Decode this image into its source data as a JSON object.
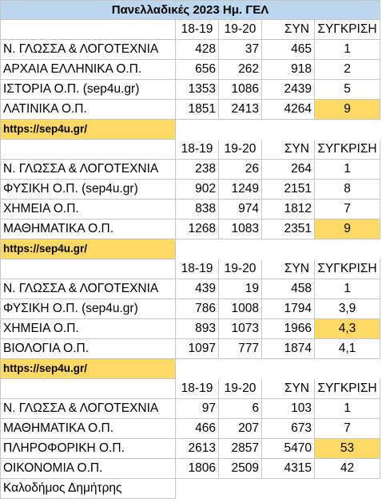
{
  "title": "Πανελλαδικές 2023 Ημ. ΓΕΛ",
  "headers": {
    "c1": "18-19",
    "c2": "19-20",
    "c3": "ΣΥΝ",
    "c4": "ΣΥΓΚΡΙΣΗ"
  },
  "link": "https://sep4u.gr/",
  "author": "Καλοδήμος Δημήτρης",
  "groups": [
    {
      "rows": [
        {
          "subject": "Ν. ΓΛΩΣΣΑ & ΛΟΓΟΤΕΧΝΙΑ",
          "y1": "428",
          "y2": "37",
          "sum": "465",
          "cmp": "1"
        },
        {
          "subject": "ΑΡΧΑΙΑ ΕΛΛΗΝΙΚΑ Ο.Π.",
          "y1": "656",
          "y2": "262",
          "sum": "918",
          "cmp": "2"
        },
        {
          "subject": "ΙΣΤΟΡΙΑ Ο.Π. (sep4u.gr)",
          "y1": "1353",
          "y2": "1086",
          "sum": "2439",
          "cmp": "5"
        },
        {
          "subject": "ΛΑΤΙΝΙΚΑ Ο.Π.",
          "y1": "1851",
          "y2": "2413",
          "sum": "4264",
          "cmp": "9"
        }
      ]
    },
    {
      "rows": [
        {
          "subject": "Ν. ΓΛΩΣΣΑ & ΛΟΓΟΤΕΧΝΙΑ",
          "y1": "238",
          "y2": "26",
          "sum": "264",
          "cmp": "1"
        },
        {
          "subject": "ΦΥΣΙΚΗ Ο.Π. (sep4u.gr)",
          "y1": "902",
          "y2": "1249",
          "sum": "2151",
          "cmp": "8"
        },
        {
          "subject": "ΧΗΜΕΙΑ Ο.Π.",
          "y1": "838",
          "y2": "974",
          "sum": "1812",
          "cmp": "7"
        },
        {
          "subject": "ΜΑΘΗΜΑΤΙΚΑ Ο.Π.",
          "y1": "1268",
          "y2": "1083",
          "sum": "2351",
          "cmp": "9"
        }
      ]
    },
    {
      "rows": [
        {
          "subject": "Ν. ΓΛΩΣΣΑ & ΛΟΓΟΤΕΧΝΙΑ",
          "y1": "439",
          "y2": "19",
          "sum": "458",
          "cmp": "1"
        },
        {
          "subject": "ΦΥΣΙΚΗ Ο.Π. (sep4u.gr)",
          "y1": "786",
          "y2": "1008",
          "sum": "1794",
          "cmp": "3,9"
        },
        {
          "subject": "ΧΗΜΕΙΑ Ο.Π.",
          "y1": "893",
          "y2": "1073",
          "sum": "1966",
          "cmp": "4,3"
        },
        {
          "subject": "ΒΙΟΛΟΓΙΑ Ο.Π.",
          "y1": "1097",
          "y2": "777",
          "sum": "1874",
          "cmp": "4,1"
        }
      ]
    },
    {
      "rows": [
        {
          "subject": "Ν. ΓΛΩΣΣΑ & ΛΟΓΟΤΕΧΝΙΑ",
          "y1": "97",
          "y2": "6",
          "sum": "103",
          "cmp": "1"
        },
        {
          "subject": "ΜΑΘΗΜΑΤΙΚΑ Ο.Π.",
          "y1": "466",
          "y2": "207",
          "sum": "673",
          "cmp": "7"
        },
        {
          "subject": "ΠΛΗΡΟΦΟΡΙΚΗ Ο.Π.",
          "y1": "2613",
          "y2": "2857",
          "sum": "5470",
          "cmp": "53"
        },
        {
          "subject": "ΟΙΚΟΝΟΜΙΑ Ο.Π.",
          "y1": "1806",
          "y2": "2509",
          "sum": "4315",
          "cmp": "42"
        }
      ]
    }
  ],
  "highlight_color": "#ffd966",
  "title_color": "#bdd7ee"
}
